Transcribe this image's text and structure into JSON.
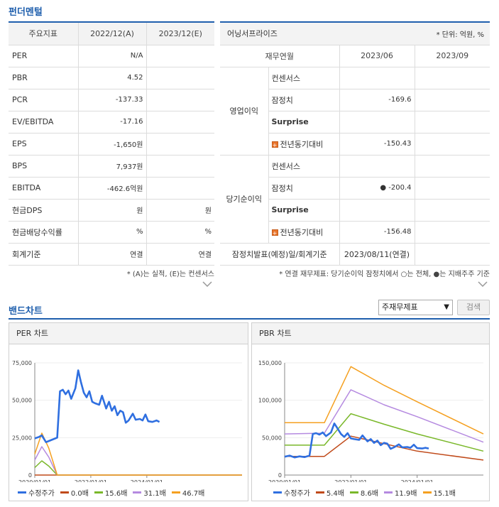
{
  "fundamental": {
    "title": "펀더멘털",
    "headers": [
      "주요지표",
      "2022/12(A)",
      "2023/12(E)"
    ],
    "rows": [
      {
        "label": "PER",
        "a": "N/A",
        "e": ""
      },
      {
        "label": "PBR",
        "a": "4.52",
        "e": ""
      },
      {
        "label": "PCR",
        "a": "-137.33",
        "e": ""
      },
      {
        "label": "EV/EBITDA",
        "a": "-17.16",
        "e": ""
      },
      {
        "label": "EPS",
        "a": "-1,650원",
        "e": ""
      },
      {
        "label": "BPS",
        "a": "7,937원",
        "e": ""
      },
      {
        "label": "EBITDA",
        "a": "-462.6억원",
        "e": ""
      },
      {
        "label": "현금DPS",
        "a": "원",
        "e": "원"
      },
      {
        "label": "현금배당수익률",
        "a": "%",
        "e": "%"
      },
      {
        "label": "회계기준",
        "a": "연결",
        "e": "연결"
      }
    ],
    "note": "* (A)는 실적, (E)는 컨센서스"
  },
  "earnings": {
    "title": "어닝서프라이즈",
    "unit": "* 단위: 억원, %",
    "headers": [
      "재무연월",
      "2023/06",
      "2023/09"
    ],
    "groups": [
      {
        "name": "영업이익",
        "rows": [
          {
            "label": "컨센서스",
            "v1": "",
            "v2": ""
          },
          {
            "label": "잠정치",
            "v1": "-169.6",
            "v2": ""
          },
          {
            "label": "Surprise",
            "v1": "",
            "v2": ""
          },
          {
            "label": "전년동기대비",
            "v1": "-150.43",
            "v2": ""
          }
        ]
      },
      {
        "name": "당기순이익",
        "rows": [
          {
            "label": "컨센서스",
            "v1": "",
            "v2": ""
          },
          {
            "label": "잠정치",
            "v1": "● -200.4",
            "v2": ""
          },
          {
            "label": "Surprise",
            "v1": "",
            "v2": ""
          },
          {
            "label": "전년동기대비",
            "v1": "-156.48",
            "v2": ""
          }
        ]
      }
    ],
    "footer_label": "잠정치발표(예정)일/회계기준",
    "footer_value": "2023/08/11(연결)",
    "note": "* 연결 재무제표: 당기순이익 잠정치에서 ○는 전체, ●는 지배주주 기준"
  },
  "band": {
    "title": "밴드차트",
    "select_value": "주재무제표",
    "search_label": "검색"
  },
  "chart_data": [
    {
      "type": "line",
      "title": "PER 차트",
      "x_ticks": [
        "2020/01/01",
        "2022/01/01",
        "2024/01/01"
      ],
      "y_ticks": [
        "0",
        "25,000",
        "50,000",
        "75,000"
      ],
      "ylim": [
        0,
        75000
      ],
      "xlim": [
        2020.0,
        2027.4
      ],
      "series": [
        {
          "name": "수정주가",
          "color": "#2f6fe0",
          "width": 2.6,
          "points": [
            [
              2020.0,
              24500
            ],
            [
              2020.15,
              25500
            ],
            [
              2020.25,
              26500
            ],
            [
              2020.4,
              22000
            ],
            [
              2020.6,
              23500
            ],
            [
              2020.8,
              25000
            ],
            [
              2020.9,
              56000
            ],
            [
              2021.0,
              57000
            ],
            [
              2021.1,
              54000
            ],
            [
              2021.2,
              56500
            ],
            [
              2021.3,
              51000
            ],
            [
              2021.45,
              58000
            ],
            [
              2021.55,
              70000
            ],
            [
              2021.65,
              62000
            ],
            [
              2021.75,
              55000
            ],
            [
              2021.85,
              52000
            ],
            [
              2021.95,
              56000
            ],
            [
              2022.05,
              49000
            ],
            [
              2022.15,
              48000
            ],
            [
              2022.3,
              47000
            ],
            [
              2022.4,
              53000
            ],
            [
              2022.55,
              44500
            ],
            [
              2022.65,
              49000
            ],
            [
              2022.75,
              43000
            ],
            [
              2022.85,
              46000
            ],
            [
              2022.95,
              40000
            ],
            [
              2023.05,
              43000
            ],
            [
              2023.15,
              42000
            ],
            [
              2023.25,
              35000
            ],
            [
              2023.35,
              36500
            ],
            [
              2023.5,
              41000
            ],
            [
              2023.6,
              37000
            ],
            [
              2023.75,
              37500
            ],
            [
              2023.85,
              36500
            ],
            [
              2023.95,
              40500
            ],
            [
              2024.05,
              36000
            ],
            [
              2024.2,
              35500
            ],
            [
              2024.35,
              36500
            ],
            [
              2024.45,
              35500
            ]
          ]
        },
        {
          "name": "0.0배",
          "color": "#c04a1a",
          "width": 1.5,
          "points": [
            [
              2020.0,
              0
            ],
            [
              2027.4,
              0
            ]
          ]
        },
        {
          "name": "15.6배",
          "color": "#7ab82a",
          "width": 1.5,
          "points": [
            [
              2020.0,
              5000
            ],
            [
              2020.25,
              9500
            ],
            [
              2020.5,
              6000
            ],
            [
              2020.8,
              0
            ],
            [
              2027.4,
              0
            ]
          ]
        },
        {
          "name": "31.1배",
          "color": "#b58ae0",
          "width": 1.5,
          "points": [
            [
              2020.0,
              10000
            ],
            [
              2020.25,
              19000
            ],
            [
              2020.5,
              12000
            ],
            [
              2020.8,
              0
            ],
            [
              2027.4,
              0
            ]
          ]
        },
        {
          "name": "46.7배",
          "color": "#f5a020",
          "width": 1.5,
          "points": [
            [
              2020.0,
              14000
            ],
            [
              2020.25,
              28000
            ],
            [
              2020.5,
              18000
            ],
            [
              2020.8,
              0
            ],
            [
              2027.4,
              0
            ]
          ]
        }
      ]
    },
    {
      "type": "line",
      "title": "PBR 차트",
      "x_ticks": [
        "2020/01/01",
        "2022/01/01",
        "2024/01/01"
      ],
      "y_ticks": [
        "0",
        "50,000",
        "100,000",
        "150,000"
      ],
      "ylim": [
        0,
        150000
      ],
      "xlim": [
        2020.0,
        2026.0
      ],
      "series": [
        {
          "name": "수정주가",
          "color": "#2f6fe0",
          "width": 2.6,
          "points": [
            [
              2020.0,
              24500
            ],
            [
              2020.15,
              26000
            ],
            [
              2020.3,
              23500
            ],
            [
              2020.45,
              25000
            ],
            [
              2020.6,
              24000
            ],
            [
              2020.75,
              26000
            ],
            [
              2020.85,
              55000
            ],
            [
              2020.95,
              56000
            ],
            [
              2021.05,
              54000
            ],
            [
              2021.15,
              57000
            ],
            [
              2021.25,
              52000
            ],
            [
              2021.4,
              57000
            ],
            [
              2021.5,
              69000
            ],
            [
              2021.6,
              62000
            ],
            [
              2021.7,
              55000
            ],
            [
              2021.8,
              51000
            ],
            [
              2021.9,
              56000
            ],
            [
              2022.0,
              49000
            ],
            [
              2022.1,
              48000
            ],
            [
              2022.25,
              47000
            ],
            [
              2022.35,
              53000
            ],
            [
              2022.5,
              45000
            ],
            [
              2022.6,
              48000
            ],
            [
              2022.7,
              43000
            ],
            [
              2022.8,
              46000
            ],
            [
              2022.9,
              40000
            ],
            [
              2023.0,
              43000
            ],
            [
              2023.1,
              42000
            ],
            [
              2023.2,
              35000
            ],
            [
              2023.3,
              37000
            ],
            [
              2023.45,
              41000
            ],
            [
              2023.55,
              37000
            ],
            [
              2023.7,
              37500
            ],
            [
              2023.8,
              36500
            ],
            [
              2023.9,
              40500
            ],
            [
              2024.0,
              36000
            ],
            [
              2024.15,
              35500
            ],
            [
              2024.25,
              36500
            ],
            [
              2024.35,
              35500
            ]
          ]
        },
        {
          "name": "5.4배",
          "color": "#c04a1a",
          "width": 1.5,
          "points": [
            [
              2020.0,
              25000
            ],
            [
              2021.2,
              25000
            ],
            [
              2022.0,
              52000
            ],
            [
              2023.0,
              42000
            ],
            [
              2024.0,
              32000
            ],
            [
              2026.0,
              20000
            ]
          ]
        },
        {
          "name": "8.6배",
          "color": "#7ab82a",
          "width": 1.5,
          "points": [
            [
              2020.0,
              40000
            ],
            [
              2021.2,
              40000
            ],
            [
              2022.0,
              82000
            ],
            [
              2023.0,
              68000
            ],
            [
              2024.0,
              55000
            ],
            [
              2026.0,
              32000
            ]
          ]
        },
        {
          "name": "11.9배",
          "color": "#b58ae0",
          "width": 1.5,
          "points": [
            [
              2020.0,
              55000
            ],
            [
              2021.2,
              56000
            ],
            [
              2022.0,
              114000
            ],
            [
              2023.0,
              94000
            ],
            [
              2024.0,
              78000
            ],
            [
              2026.0,
              44000
            ]
          ]
        },
        {
          "name": "15.1배",
          "color": "#f5a020",
          "width": 1.5,
          "points": [
            [
              2020.0,
              70000
            ],
            [
              2021.2,
              70000
            ],
            [
              2022.0,
              145000
            ],
            [
              2023.0,
              120000
            ],
            [
              2024.0,
              98000
            ],
            [
              2026.0,
              55000
            ]
          ]
        }
      ]
    }
  ]
}
